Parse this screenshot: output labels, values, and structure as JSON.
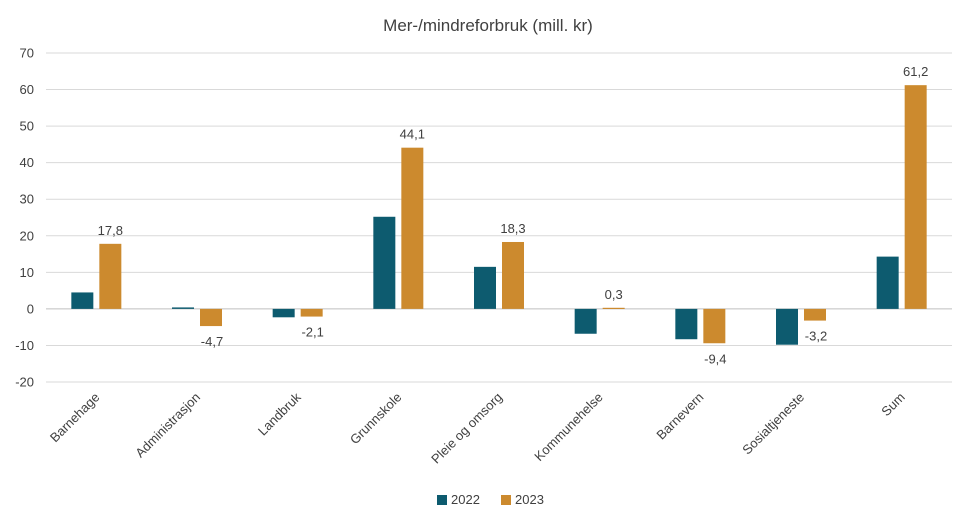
{
  "chart_data": {
    "type": "bar",
    "title": "Mer-/mindreforbruk (mill. kr)",
    "categories": [
      "Barnehage",
      "Administrasjon",
      "Landbruk",
      "Grunnskole",
      "Pleie og omsorg",
      "Kommunehelse",
      "Barnevern",
      "Sosialtjeneste",
      "Sum"
    ],
    "series": [
      {
        "name": "2022",
        "color": "#0d5b6f",
        "values": [
          4.5,
          0.4,
          -2.3,
          25.2,
          11.5,
          -6.8,
          -8.3,
          -9.8,
          14.3
        ]
      },
      {
        "name": "2023",
        "color": "#cc8a2e",
        "values": [
          17.8,
          -4.7,
          -2.1,
          44.1,
          18.3,
          0.3,
          -9.4,
          -3.2,
          61.2
        ]
      }
    ],
    "data_labels": [
      "17,8",
      "-4,7",
      "-2,1",
      "44,1",
      "18,3",
      "0,3",
      "-9,4",
      "-3,2",
      "61,2"
    ],
    "ylim": [
      -20,
      70
    ],
    "yticks": [
      70,
      60,
      50,
      40,
      30,
      20,
      10,
      0,
      -10,
      -20
    ],
    "xlabel": "",
    "ylabel": "",
    "grid": true,
    "legend": "bottom"
  }
}
